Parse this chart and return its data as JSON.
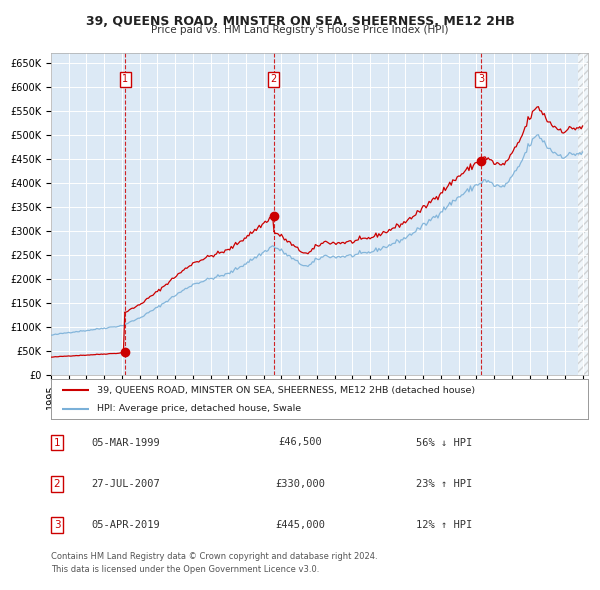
{
  "title": "39, QUEENS ROAD, MINSTER ON SEA, SHEERNESS, ME12 2HB",
  "subtitle": "Price paid vs. HM Land Registry's House Price Index (HPI)",
  "background_color": "#dce9f5",
  "grid_color": "#ffffff",
  "hpi_color": "#7ab0d8",
  "price_color": "#cc0000",
  "ylim": [
    0,
    670000
  ],
  "yticks": [
    0,
    50000,
    100000,
    150000,
    200000,
    250000,
    300000,
    350000,
    400000,
    450000,
    500000,
    550000,
    600000,
    650000
  ],
  "ytick_labels": [
    "£0",
    "£50K",
    "£100K",
    "£150K",
    "£200K",
    "£250K",
    "£300K",
    "£350K",
    "£400K",
    "£450K",
    "£500K",
    "£550K",
    "£600K",
    "£650K"
  ],
  "xlim_start": 1995.0,
  "xlim_end": 2025.3,
  "xtick_years": [
    1995,
    1996,
    1997,
    1998,
    1999,
    2000,
    2001,
    2002,
    2003,
    2004,
    2005,
    2006,
    2007,
    2008,
    2009,
    2010,
    2011,
    2012,
    2013,
    2014,
    2015,
    2016,
    2017,
    2018,
    2019,
    2020,
    2021,
    2022,
    2023,
    2024,
    2025
  ],
  "sales": [
    {
      "date": 1999.18,
      "price": 46500,
      "label": "1"
    },
    {
      "date": 2007.57,
      "price": 330000,
      "label": "2"
    },
    {
      "date": 2019.26,
      "price": 445000,
      "label": "3"
    }
  ],
  "sale_table": [
    {
      "num": "1",
      "date": "05-MAR-1999",
      "price": "£46,500",
      "hpi_rel": "56% ↓ HPI"
    },
    {
      "num": "2",
      "date": "27-JUL-2007",
      "price": "£330,000",
      "hpi_rel": "23% ↑ HPI"
    },
    {
      "num": "3",
      "date": "05-APR-2019",
      "price": "£445,000",
      "hpi_rel": "12% ↑ HPI"
    }
  ],
  "legend_price_label": "39, QUEENS ROAD, MINSTER ON SEA, SHEERNESS, ME12 2HB (detached house)",
  "legend_hpi_label": "HPI: Average price, detached house, Swale",
  "footer1": "Contains HM Land Registry data © Crown copyright and database right 2024.",
  "footer2": "This data is licensed under the Open Government Licence v3.0."
}
